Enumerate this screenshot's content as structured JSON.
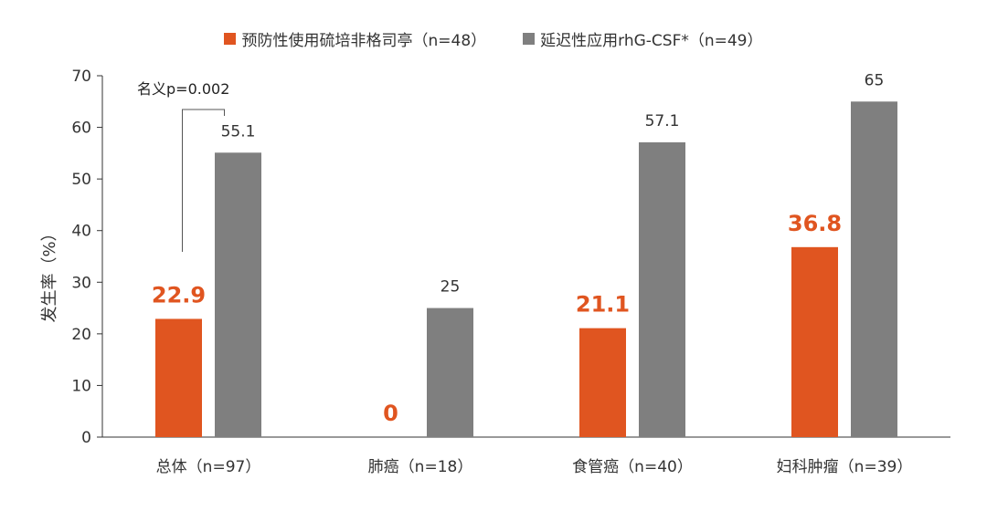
{
  "legend": {
    "s1": "预防性使用硫培非格司亭（n=48）",
    "s2": "延迟性应用rhG-CSF*（n=49）"
  },
  "annotation": "名义p=0.002",
  "colors": {
    "s1": "#e05520",
    "s2": "#7f7f7f",
    "axis": "#333333",
    "text": "#333333"
  },
  "chart_data": {
    "type": "bar",
    "categories": [
      "总体（n=97）",
      "肺癌（n=18）",
      "食管癌（n=40）",
      "妇科肿瘤（n=39）"
    ],
    "series": [
      {
        "name": "预防性使用硫培非格司亭（n=48）",
        "values": [
          22.9,
          0,
          21.1,
          36.8
        ],
        "labels": [
          "22.9",
          "0",
          "21.1",
          "36.8"
        ]
      },
      {
        "name": "延迟性应用rhG-CSF*（n=49）",
        "values": [
          55.1,
          25,
          57.1,
          65
        ],
        "labels": [
          "55.1",
          "25",
          "57.1",
          "65"
        ]
      }
    ],
    "ylabel": "发生率（%）",
    "ylim": [
      0,
      70
    ],
    "yticks": [
      0,
      10,
      20,
      30,
      40,
      50,
      60,
      70
    ],
    "grid": false,
    "legend_position": "top-center"
  }
}
